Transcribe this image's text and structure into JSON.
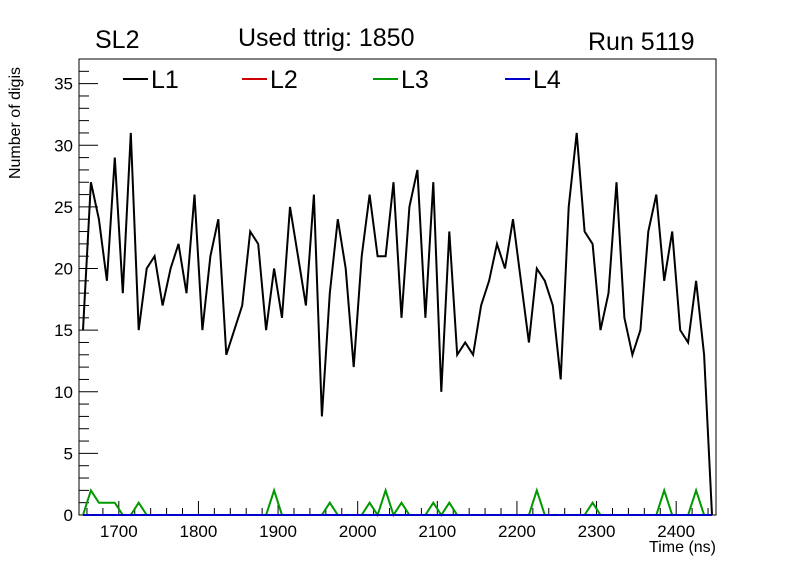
{
  "header": {
    "left": "SL2",
    "title": "Used ttrig: 1850",
    "right": "Run 5119"
  },
  "colors": {
    "L1": "#000000",
    "L2": "#cc0000",
    "L3": "#009900",
    "L4": "#0000cc"
  },
  "chart_data": {
    "type": "line",
    "title": "Used ttrig: 1850",
    "xlabel": "Time (ns)",
    "ylabel": "Number of digis",
    "xlim": [
      1650,
      2450
    ],
    "ylim": [
      0,
      37
    ],
    "xticks": [
      1700,
      1800,
      1900,
      2000,
      2100,
      2200,
      2300,
      2400
    ],
    "yticks": [
      0,
      5,
      10,
      15,
      20,
      25,
      30,
      35
    ],
    "grid": false,
    "legend_position": "top",
    "series": [
      {
        "name": "L1",
        "color": "#000000",
        "x": [
          1655,
          1665,
          1675,
          1685,
          1695,
          1705,
          1715,
          1725,
          1735,
          1745,
          1755,
          1765,
          1775,
          1785,
          1795,
          1805,
          1815,
          1825,
          1835,
          1845,
          1855,
          1865,
          1875,
          1885,
          1895,
          1905,
          1915,
          1925,
          1935,
          1945,
          1955,
          1965,
          1975,
          1985,
          1995,
          2005,
          2015,
          2025,
          2035,
          2045,
          2055,
          2065,
          2075,
          2085,
          2095,
          2105,
          2115,
          2125,
          2135,
          2145,
          2155,
          2165,
          2175,
          2185,
          2195,
          2205,
          2215,
          2225,
          2235,
          2245,
          2255,
          2265,
          2275,
          2285,
          2295,
          2305,
          2315,
          2325,
          2335,
          2345,
          2355,
          2365,
          2375,
          2385,
          2395,
          2405,
          2415,
          2425,
          2435,
          2445
        ],
        "values": [
          15,
          27,
          24,
          19,
          29,
          18,
          31,
          15,
          20,
          21,
          17,
          20,
          22,
          18,
          26,
          15,
          21,
          24,
          13,
          15,
          17,
          23,
          22,
          15,
          20,
          16,
          25,
          21,
          17,
          26,
          8,
          18,
          24,
          20,
          12,
          21,
          26,
          21,
          21,
          27,
          16,
          25,
          28,
          16,
          27,
          10,
          23,
          13,
          14,
          13,
          17,
          19,
          22,
          20,
          24,
          19,
          14,
          20,
          19,
          17,
          11,
          25,
          31,
          23,
          22,
          15,
          18,
          27,
          16,
          13,
          15,
          23,
          26,
          19,
          23,
          15,
          14,
          19,
          13,
          0
        ]
      },
      {
        "name": "L2",
        "color": "#cc0000",
        "x": [
          1655,
          2445
        ],
        "values": [
          0,
          0
        ]
      },
      {
        "name": "L3",
        "color": "#009900",
        "x": [
          1655,
          1665,
          1675,
          1685,
          1695,
          1705,
          1715,
          1725,
          1735,
          1745,
          1885,
          1895,
          1905,
          1955,
          1965,
          1975,
          2005,
          2015,
          2025,
          2035,
          2045,
          2055,
          2065,
          2085,
          2095,
          2105,
          2115,
          2125,
          2215,
          2225,
          2235,
          2285,
          2295,
          2305,
          2375,
          2385,
          2395,
          2415,
          2425,
          2435,
          2445
        ],
        "values": [
          0,
          2,
          1,
          1,
          1,
          0,
          0,
          1,
          0,
          0,
          0,
          2,
          0,
          0,
          1,
          0,
          0,
          1,
          0,
          2,
          0,
          1,
          0,
          0,
          1,
          0,
          1,
          0,
          0,
          2,
          0,
          0,
          1,
          0,
          0,
          2,
          0,
          0,
          2,
          0,
          0
        ]
      },
      {
        "name": "L4",
        "color": "#0000cc",
        "x": [
          1655,
          2445
        ],
        "values": [
          0,
          0
        ]
      }
    ]
  }
}
